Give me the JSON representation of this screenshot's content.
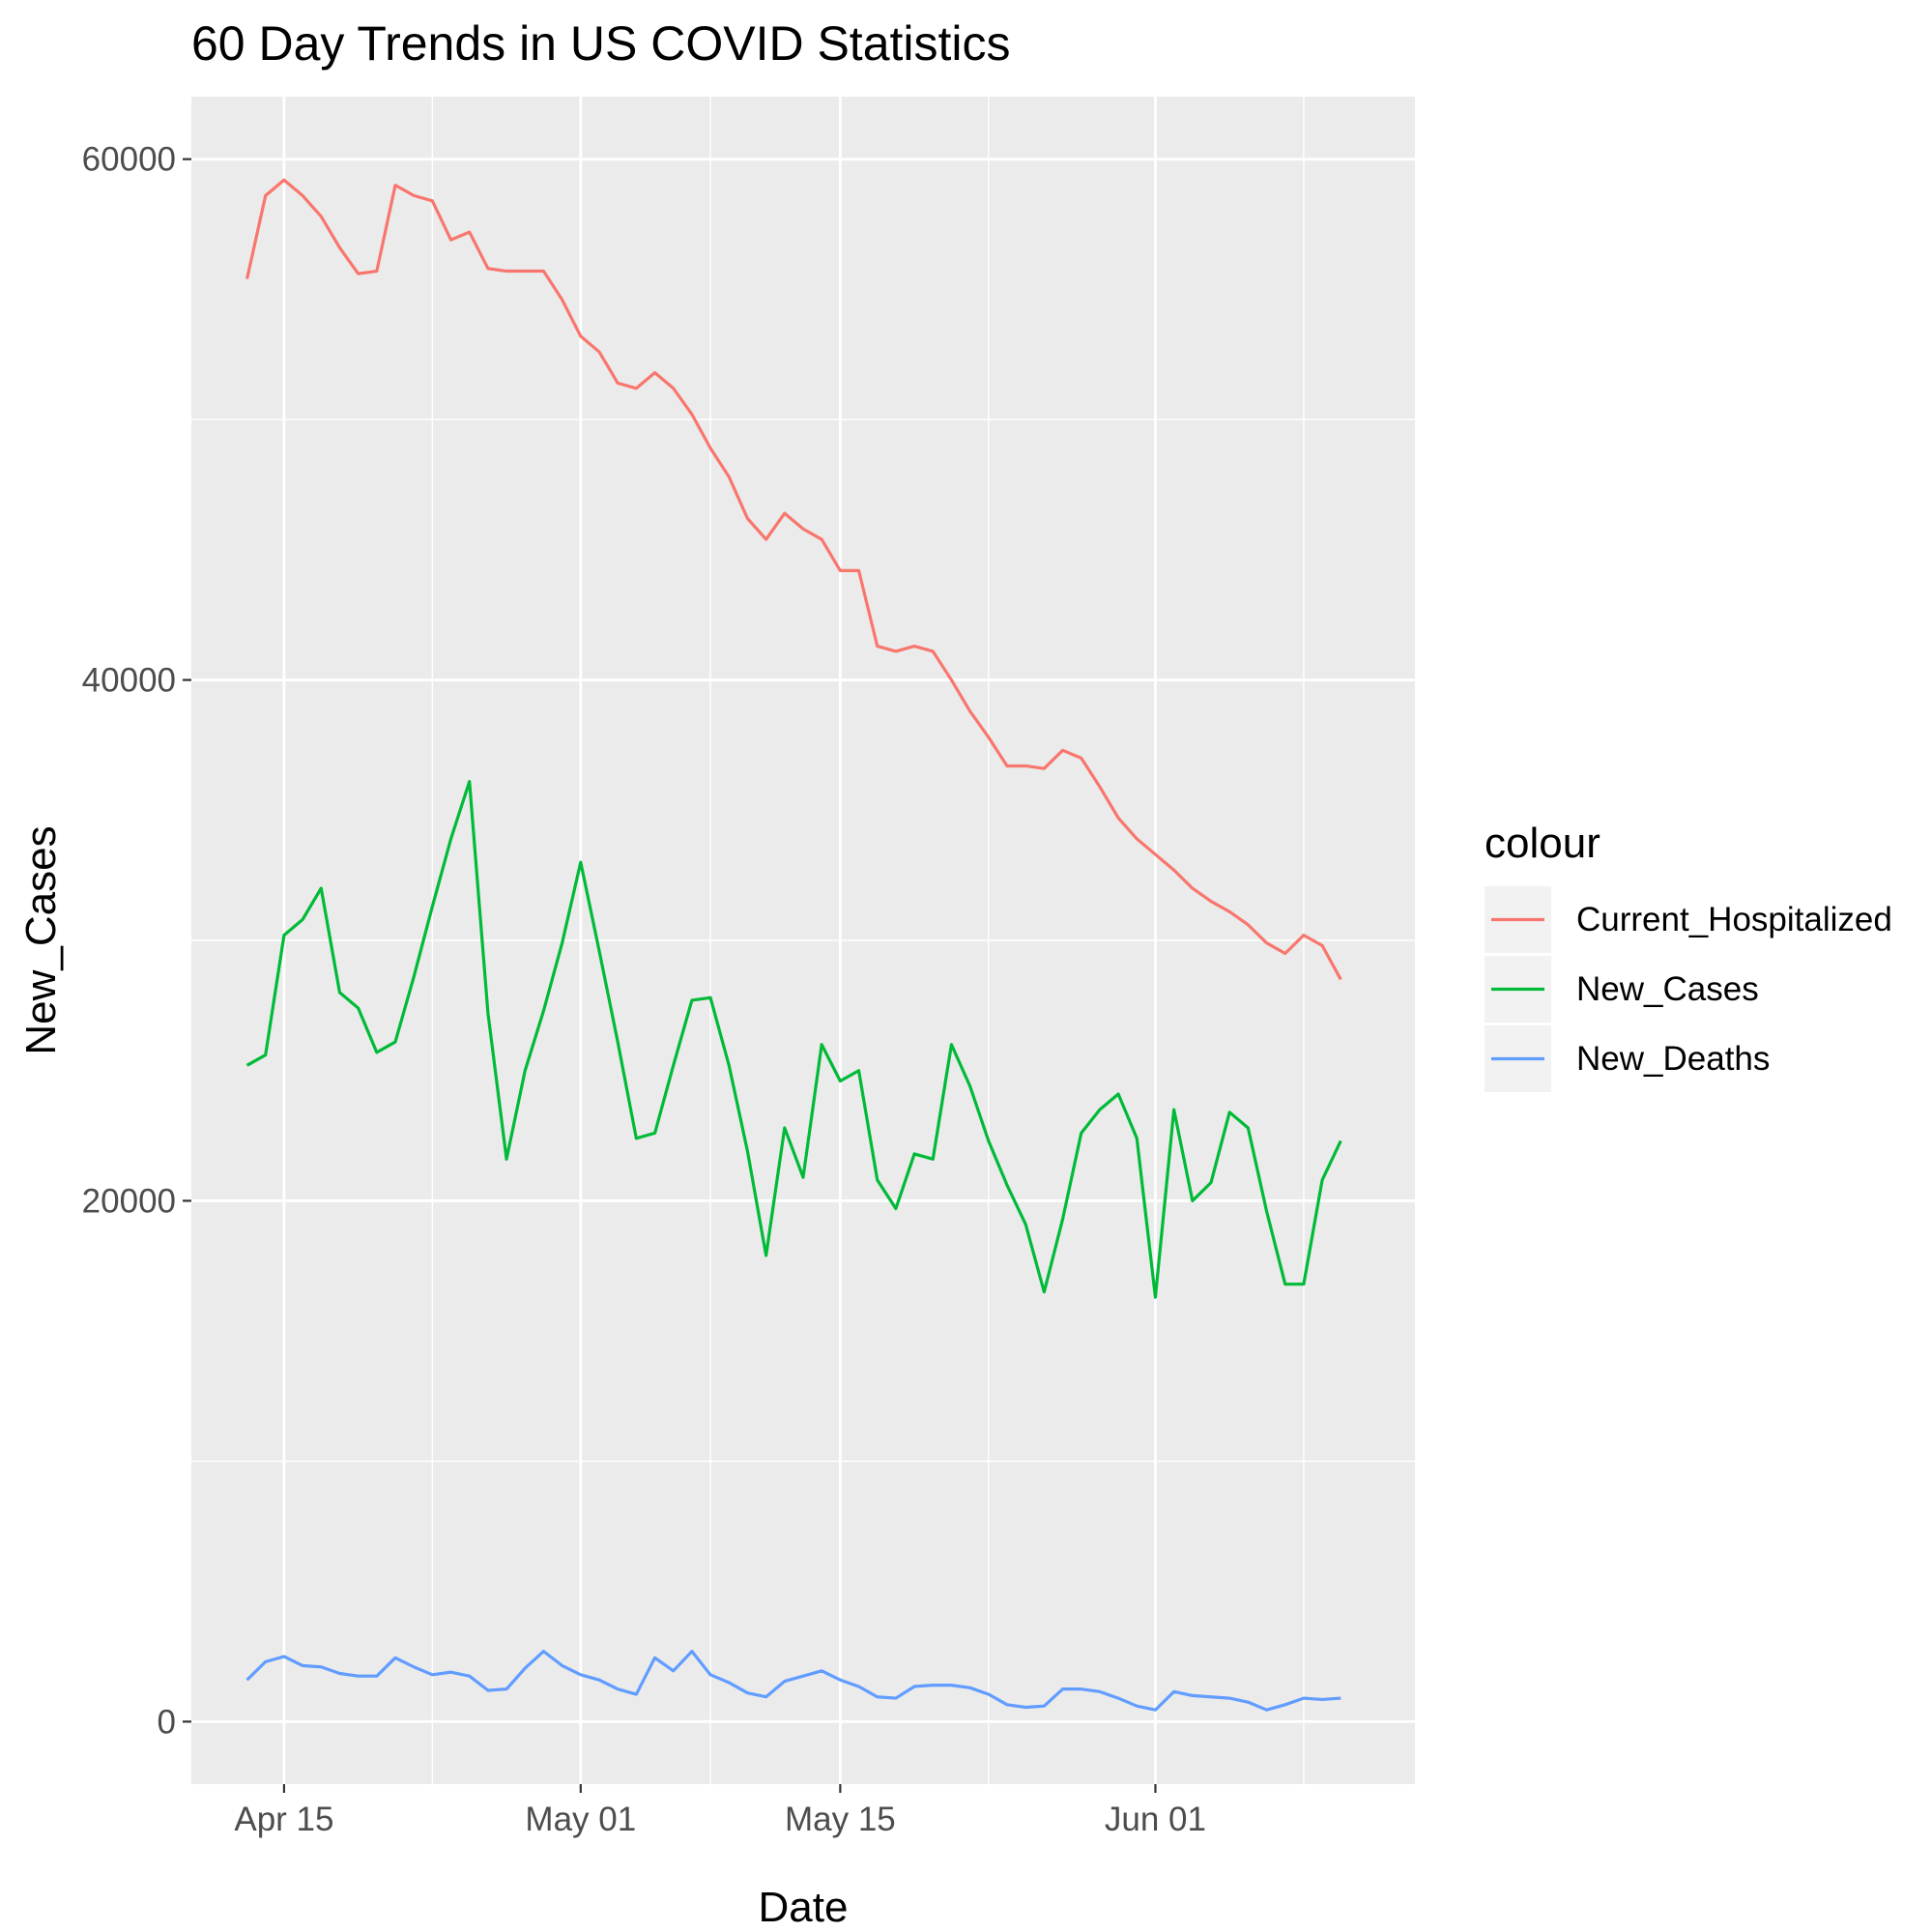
{
  "chart_data": {
    "type": "line",
    "title": "60 Day Trends in US COVID Statistics",
    "xlabel": "Date",
    "ylabel": "New_Cases",
    "x_start": "2020-04-13",
    "x": [
      "2020-04-13",
      "2020-04-14",
      "2020-04-15",
      "2020-04-16",
      "2020-04-17",
      "2020-04-18",
      "2020-04-19",
      "2020-04-20",
      "2020-04-21",
      "2020-04-22",
      "2020-04-23",
      "2020-04-24",
      "2020-04-25",
      "2020-04-26",
      "2020-04-27",
      "2020-04-28",
      "2020-04-29",
      "2020-04-30",
      "2020-05-01",
      "2020-05-02",
      "2020-05-03",
      "2020-05-04",
      "2020-05-05",
      "2020-05-06",
      "2020-05-07",
      "2020-05-08",
      "2020-05-09",
      "2020-05-10",
      "2020-05-11",
      "2020-05-12",
      "2020-05-13",
      "2020-05-14",
      "2020-05-15",
      "2020-05-16",
      "2020-05-17",
      "2020-05-18",
      "2020-05-19",
      "2020-05-20",
      "2020-05-21",
      "2020-05-22",
      "2020-05-23",
      "2020-05-24",
      "2020-05-25",
      "2020-05-26",
      "2020-05-27",
      "2020-05-28",
      "2020-05-29",
      "2020-05-30",
      "2020-05-31",
      "2020-06-01",
      "2020-06-02",
      "2020-06-03",
      "2020-06-04",
      "2020-06-05",
      "2020-06-06",
      "2020-06-07",
      "2020-06-08",
      "2020-06-09",
      "2020-06-10",
      "2020-06-11"
    ],
    "xlim": [
      "2020-04-10",
      "2020-06-15"
    ],
    "x_ticks": [
      {
        "date": "2020-04-15",
        "label": "Apr 15"
      },
      {
        "date": "2020-05-01",
        "label": "May 01"
      },
      {
        "date": "2020-05-15",
        "label": "May 15"
      },
      {
        "date": "2020-06-01",
        "label": "Jun 01"
      }
    ],
    "x_minor_ticks": [
      "2020-04-23",
      "2020-05-08",
      "2020-05-23",
      "2020-06-09"
    ],
    "ylim": [
      -2400,
      62400
    ],
    "y_ticks": [
      0,
      20000,
      40000,
      60000
    ],
    "y_minor_ticks": [
      10000,
      30000,
      50000
    ],
    "legend_title": "colour",
    "legend_position": "right",
    "grid": true,
    "series": [
      {
        "name": "Current_Hospitalized",
        "color": "#F8766D",
        "values": [
          55400,
          58600,
          59200,
          58600,
          57800,
          56600,
          55600,
          55700,
          59000,
          58600,
          58400,
          56900,
          57200,
          55800,
          55700,
          55700,
          55700,
          54600,
          53200,
          52600,
          51400,
          51200,
          51800,
          51200,
          50200,
          48900,
          47800,
          46200,
          45400,
          46400,
          45800,
          45400,
          44200,
          44200,
          41300,
          41100,
          41300,
          41100,
          40000,
          38800,
          37800,
          36700,
          36700,
          36600,
          37300,
          37000,
          35900,
          34700,
          33900,
          33300,
          32700,
          32000,
          31500,
          31100,
          30600,
          29900,
          29500,
          30200,
          29800,
          28500
        ]
      },
      {
        "name": "New_Cases",
        "color": "#00BA38",
        "values": [
          25200,
          25600,
          30200,
          30800,
          32000,
          28000,
          27400,
          25700,
          26100,
          28600,
          31300,
          33900,
          36100,
          27200,
          21600,
          25000,
          27300,
          29900,
          33000,
          29600,
          26100,
          22400,
          22600,
          25200,
          27700,
          27800,
          25200,
          21900,
          17900,
          22800,
          20900,
          26000,
          24600,
          25000,
          20800,
          19700,
          21800,
          21600,
          26000,
          24400,
          22300,
          20600,
          19100,
          16500,
          19300,
          22600,
          23500,
          24100,
          22400,
          16300,
          23500,
          20000,
          20700,
          23400,
          22800,
          19600,
          16800,
          16800,
          20800,
          22300
        ]
      },
      {
        "name": "New_Deaths",
        "color": "#619CFF",
        "values": [
          1600,
          2300,
          2500,
          2150,
          2100,
          1850,
          1750,
          1750,
          2450,
          2100,
          1800,
          1900,
          1750,
          1200,
          1250,
          2050,
          2700,
          2150,
          1800,
          1600,
          1250,
          1050,
          2450,
          1950,
          2700,
          1800,
          1500,
          1100,
          950,
          1550,
          1750,
          1950,
          1600,
          1350,
          950,
          900,
          1350,
          1400,
          1400,
          1300,
          1050,
          650,
          550,
          600,
          1250,
          1250,
          1150,
          900,
          600,
          450,
          1150,
          1000,
          950,
          900,
          750,
          450,
          650,
          900,
          850,
          900
        ]
      }
    ]
  }
}
